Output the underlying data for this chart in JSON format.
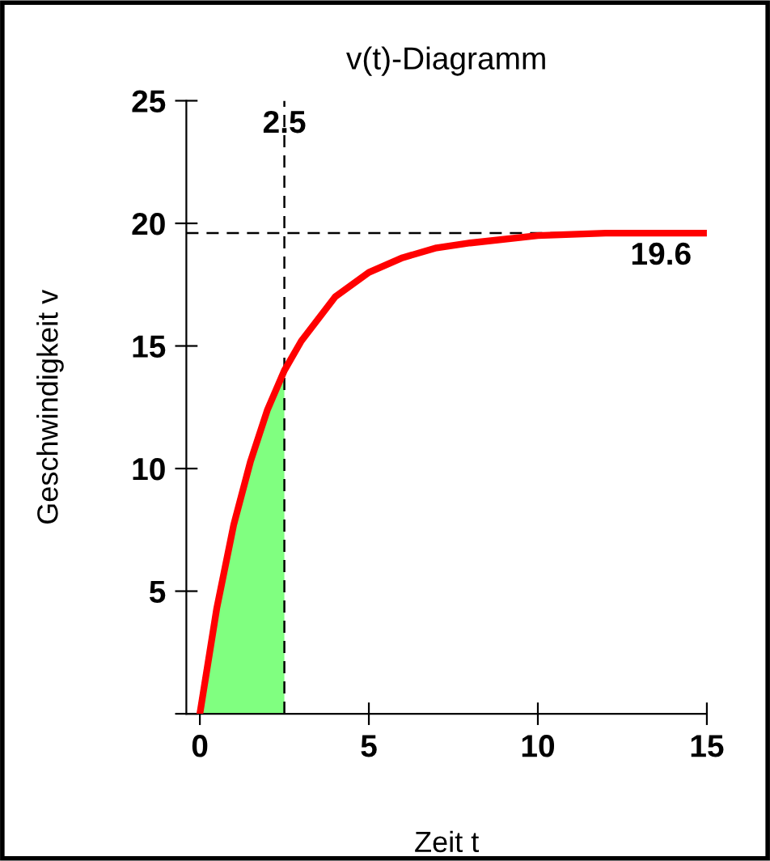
{
  "chart_data": {
    "type": "line",
    "title": "v(t)-Diagramm",
    "xlabel": "Zeit t",
    "ylabel": "Geschwindigkeit v",
    "series": [
      {
        "type": "area",
        "color": "#80ff80",
        "x": [
          0,
          0.5,
          1,
          1.5,
          2,
          2.5
        ],
        "values": [
          0,
          4.3,
          7.7,
          10.3,
          12.4,
          14.0
        ]
      },
      {
        "color": "#ff0000",
        "x": [
          0,
          0.5,
          1,
          1.5,
          2,
          2.5,
          3,
          4,
          5,
          6,
          7,
          8,
          10,
          12,
          15
        ],
        "values": [
          0,
          4.3,
          7.7,
          10.3,
          12.4,
          14.0,
          15.2,
          17.0,
          18.0,
          18.6,
          19.0,
          19.2,
          19.5,
          19.6,
          19.6
        ]
      }
    ],
    "ref_lines": [
      {
        "axis": "x",
        "value": 2.5,
        "label": "2.5",
        "color": "#000000",
        "line_style": "dashed"
      },
      {
        "axis": "y",
        "value": 19.6,
        "label": "19.6",
        "color": "#000000",
        "line_style": "dashed"
      }
    ],
    "xlim": [
      -0.4,
      15
    ],
    "ylim": [
      0,
      25
    ],
    "xticks": [
      0,
      5,
      10,
      15
    ],
    "yticks": [
      {
        "value": 0,
        "label": null
      },
      5,
      10,
      15,
      20,
      25
    ],
    "grid": false,
    "legend": false
  }
}
